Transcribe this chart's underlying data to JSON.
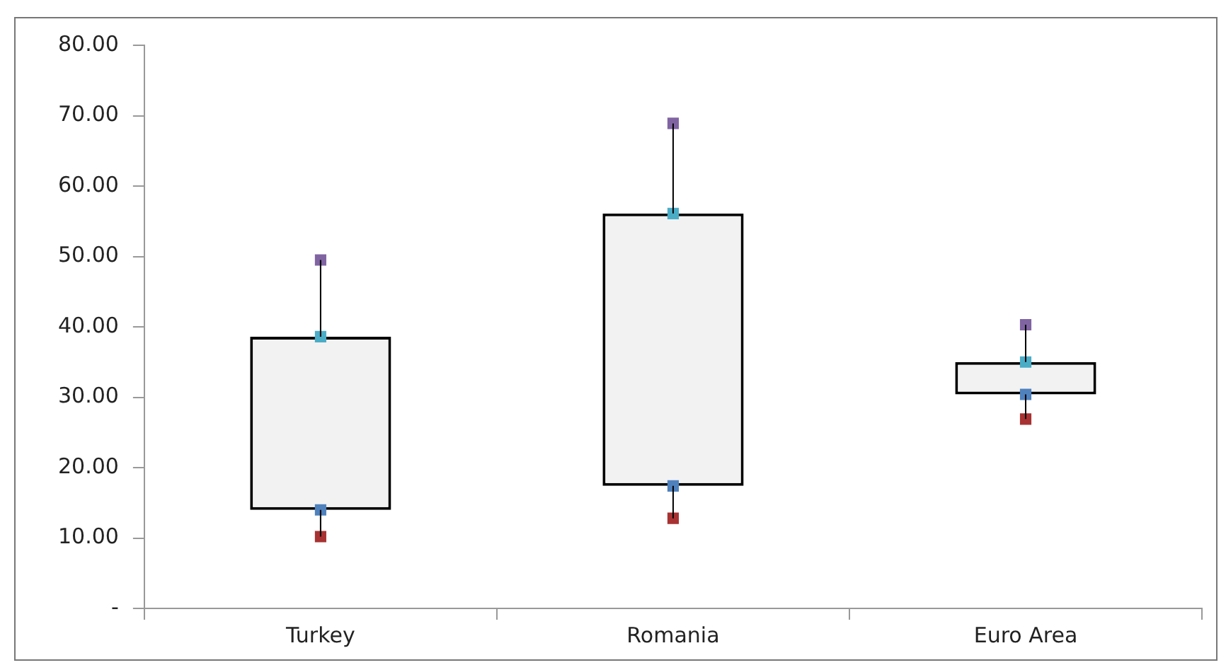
{
  "chart_data": {
    "type": "box",
    "categories": [
      "Turkey",
      "Romania",
      "Euro Area"
    ],
    "boxes": [
      {
        "low": 10.2,
        "q1": 14.0,
        "q3": 38.6,
        "high": 49.5
      },
      {
        "low": 12.8,
        "q1": 17.4,
        "q3": 56.1,
        "high": 68.9
      },
      {
        "low": 26.9,
        "q1": 30.4,
        "q3": 35.0,
        "high": 40.3
      }
    ],
    "color": "#000000",
    "series": [
      {
        "type": "scatter",
        "values": [
          10.2,
          12.8,
          26.9
        ],
        "color": "#a83232"
      },
      {
        "type": "scatter",
        "values": [
          14.0,
          17.4,
          30.4
        ],
        "color": "#4f81bd"
      },
      {
        "type": "scatter",
        "values": [
          38.6,
          56.1,
          35.0
        ],
        "color": "#4bacc6"
      },
      {
        "type": "scatter",
        "values": [
          49.5,
          68.9,
          40.3
        ],
        "color": "#8064a2"
      }
    ],
    "marker": "square",
    "ylim": [
      0,
      80
    ],
    "yticks": [
      {
        "value": 0,
        "label": "-"
      },
      {
        "value": 10,
        "label": "10.00"
      },
      {
        "value": 20,
        "label": "20.00"
      },
      {
        "value": 30,
        "label": "30.00"
      },
      {
        "value": 40,
        "label": "40.00"
      },
      {
        "value": 50,
        "label": "50.00"
      },
      {
        "value": 60,
        "label": "60.00"
      },
      {
        "value": 70,
        "label": "70.00"
      },
      {
        "value": 80,
        "label": "80.00"
      }
    ],
    "grid": false
  }
}
